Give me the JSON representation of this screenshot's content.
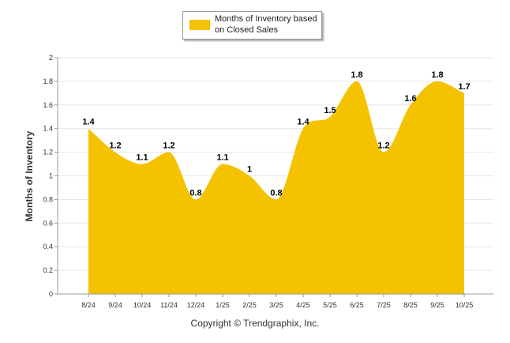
{
  "colors": {
    "fill": "#F5C200",
    "grid": "#e6e6e6",
    "axis": "#999999",
    "text": "#333333"
  },
  "legend": {
    "label": "Months of Inventory based on Closed Sales"
  },
  "copyright": "Copyright © Trendgraphix, Inc.",
  "chart_data": {
    "type": "area",
    "title": "",
    "xlabel": "",
    "ylabel": "Months of Inventory",
    "categories": [
      "8/24",
      "9/24",
      "10/24",
      "11/24",
      "12/24",
      "1/25",
      "2/25",
      "3/25",
      "4/25",
      "5/25",
      "6/25",
      "7/25",
      "8/25",
      "9/25",
      "10/25"
    ],
    "series": [
      {
        "name": "Months of Inventory based on Closed Sales",
        "values": [
          1.4,
          1.2,
          1.1,
          1.2,
          0.8,
          1.1,
          1,
          0.8,
          1.4,
          1.5,
          1.8,
          1.2,
          1.6,
          1.8,
          1.7
        ],
        "labels": [
          "1.4",
          "1.2",
          "1.1",
          "1.2",
          "0.8",
          "1.1",
          "1",
          "0.8",
          "1.4",
          "1.5",
          "1.8",
          "1.2",
          "1.6",
          "1.8",
          "1.7"
        ]
      }
    ],
    "ylim": [
      0,
      2
    ],
    "yticks": [
      "0",
      "0.2",
      "0.4",
      "0.6",
      "0.8",
      "1",
      "1.2",
      "1.4",
      "1.6",
      "1.8",
      "2"
    ],
    "grid": true,
    "legend_position": "top-center"
  }
}
